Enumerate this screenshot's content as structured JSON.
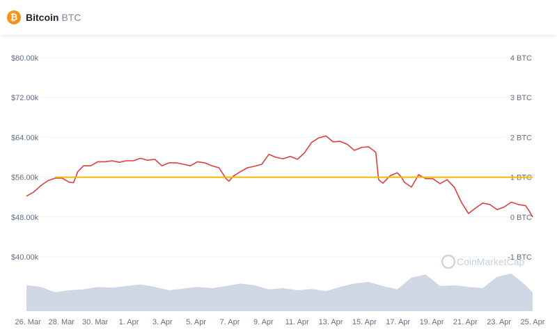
{
  "header": {
    "icon": "bitcoin-icon",
    "icon_glyph": "₿",
    "name": "Bitcoin",
    "symbol": "BTC"
  },
  "watermark": "CoinMarketCap",
  "colors": {
    "price_line": "#e03e3e",
    "holdings_line": "#f5b700",
    "volume_fill": "#cfd6e4",
    "grid": "#eff2f5",
    "brand_icon": "#f7931a"
  },
  "chart_data": {
    "type": "line",
    "x_ticks": [
      "26. Mar",
      "28. Mar",
      "30. Mar",
      "1. Apr",
      "3. Apr",
      "5. Apr",
      "7. Apr",
      "9. Apr",
      "11. Apr",
      "13. Apr",
      "15. Apr",
      "17. Apr",
      "19. Apr",
      "21. Apr",
      "23. Apr",
      "25. Apr"
    ],
    "x_range_days": [
      0,
      30.6
    ],
    "y_left": {
      "ticks": [
        "$80.00k",
        "$72.00k",
        "$64.00k",
        "$56.00k",
        "$48.00k",
        "$40.00k"
      ],
      "values": [
        80000,
        72000,
        64000,
        56000,
        48000,
        40000
      ],
      "lim": [
        40000,
        80000
      ]
    },
    "y_right": {
      "ticks": [
        "4 BTC",
        "3 BTC",
        "2 BTC",
        "1 BTC",
        "0 BTC",
        "-1 BTC"
      ],
      "values": [
        4,
        3,
        2,
        1,
        0,
        -1
      ],
      "lim": [
        -1,
        4
      ]
    },
    "series": [
      {
        "role": "price",
        "axis": "left",
        "points": [
          [
            0.0,
            52200
          ],
          [
            0.5,
            53000
          ],
          [
            1.0,
            54300
          ],
          [
            1.5,
            55300
          ],
          [
            2.0,
            55800
          ],
          [
            2.5,
            55800
          ],
          [
            3.0,
            55000
          ],
          [
            3.3,
            54900
          ],
          [
            3.6,
            57100
          ],
          [
            4.0,
            58300
          ],
          [
            4.5,
            58300
          ],
          [
            5.0,
            59100
          ],
          [
            5.5,
            59100
          ],
          [
            6.0,
            59300
          ],
          [
            6.5,
            59000
          ],
          [
            7.0,
            59300
          ],
          [
            7.5,
            59300
          ],
          [
            8.0,
            59800
          ],
          [
            8.5,
            59400
          ],
          [
            9.0,
            59600
          ],
          [
            9.5,
            58300
          ],
          [
            10.0,
            58900
          ],
          [
            10.5,
            58900
          ],
          [
            11.0,
            58600
          ],
          [
            11.5,
            58300
          ],
          [
            12.0,
            59100
          ],
          [
            12.5,
            58900
          ],
          [
            13.0,
            58300
          ],
          [
            13.5,
            57900
          ],
          [
            14.0,
            55700
          ],
          [
            14.2,
            55200
          ],
          [
            14.5,
            56200
          ],
          [
            15.0,
            57100
          ],
          [
            15.5,
            57900
          ],
          [
            16.0,
            58200
          ],
          [
            16.5,
            58600
          ],
          [
            17.0,
            60600
          ],
          [
            17.5,
            60000
          ],
          [
            18.0,
            59700
          ],
          [
            18.5,
            60200
          ],
          [
            19.0,
            59600
          ],
          [
            19.5,
            60900
          ],
          [
            20.0,
            63000
          ],
          [
            20.5,
            63900
          ],
          [
            21.0,
            64300
          ],
          [
            21.5,
            63100
          ],
          [
            22.0,
            63200
          ],
          [
            22.5,
            62600
          ],
          [
            23.0,
            61400
          ],
          [
            23.5,
            62000
          ],
          [
            24.0,
            62100
          ],
          [
            24.5,
            61000
          ],
          [
            24.7,
            55500
          ],
          [
            25.0,
            54800
          ],
          [
            25.5,
            56300
          ],
          [
            26.0,
            56900
          ],
          [
            26.3,
            56000
          ],
          [
            26.5,
            55000
          ],
          [
            27.0,
            54000
          ],
          [
            27.5,
            56500
          ],
          [
            28.0,
            55700
          ],
          [
            28.5,
            55700
          ],
          [
            29.0,
            54700
          ],
          [
            29.5,
            55500
          ],
          [
            30.0,
            54000
          ],
          [
            30.5,
            51000
          ],
          [
            31.0,
            48700
          ],
          [
            31.5,
            49800
          ],
          [
            32.0,
            50800
          ],
          [
            32.5,
            50500
          ],
          [
            33.0,
            49500
          ],
          [
            33.5,
            50000
          ],
          [
            34.0,
            51000
          ],
          [
            34.5,
            50500
          ],
          [
            35.0,
            50300
          ],
          [
            35.3,
            49000
          ],
          [
            35.5,
            48000
          ]
        ]
      },
      {
        "role": "holdings",
        "axis": "right",
        "points": [
          [
            2.0,
            1.0
          ],
          [
            35.5,
            1.0
          ]
        ]
      },
      {
        "role": "volume",
        "axis": "volume",
        "points": [
          [
            0.0,
            0.62
          ],
          [
            1.0,
            0.58
          ],
          [
            2.0,
            0.45
          ],
          [
            3.0,
            0.5
          ],
          [
            4.0,
            0.52
          ],
          [
            5.0,
            0.58
          ],
          [
            6.0,
            0.56
          ],
          [
            7.0,
            0.6
          ],
          [
            8.0,
            0.64
          ],
          [
            9.0,
            0.58
          ],
          [
            10.0,
            0.5
          ],
          [
            11.0,
            0.54
          ],
          [
            12.0,
            0.58
          ],
          [
            13.0,
            0.55
          ],
          [
            14.0,
            0.6
          ],
          [
            15.0,
            0.66
          ],
          [
            16.0,
            0.62
          ],
          [
            17.0,
            0.52
          ],
          [
            18.0,
            0.55
          ],
          [
            19.0,
            0.5
          ],
          [
            20.0,
            0.53
          ],
          [
            21.0,
            0.48
          ],
          [
            22.0,
            0.58
          ],
          [
            23.0,
            0.66
          ],
          [
            24.0,
            0.7
          ],
          [
            25.0,
            0.6
          ],
          [
            26.0,
            0.52
          ],
          [
            27.0,
            0.8
          ],
          [
            28.0,
            0.88
          ],
          [
            29.0,
            0.6
          ],
          [
            30.0,
            0.62
          ],
          [
            31.0,
            0.58
          ],
          [
            32.0,
            0.55
          ],
          [
            33.0,
            0.82
          ],
          [
            34.0,
            0.9
          ],
          [
            35.0,
            0.62
          ],
          [
            36.0,
            0.45
          ]
        ]
      }
    ]
  }
}
